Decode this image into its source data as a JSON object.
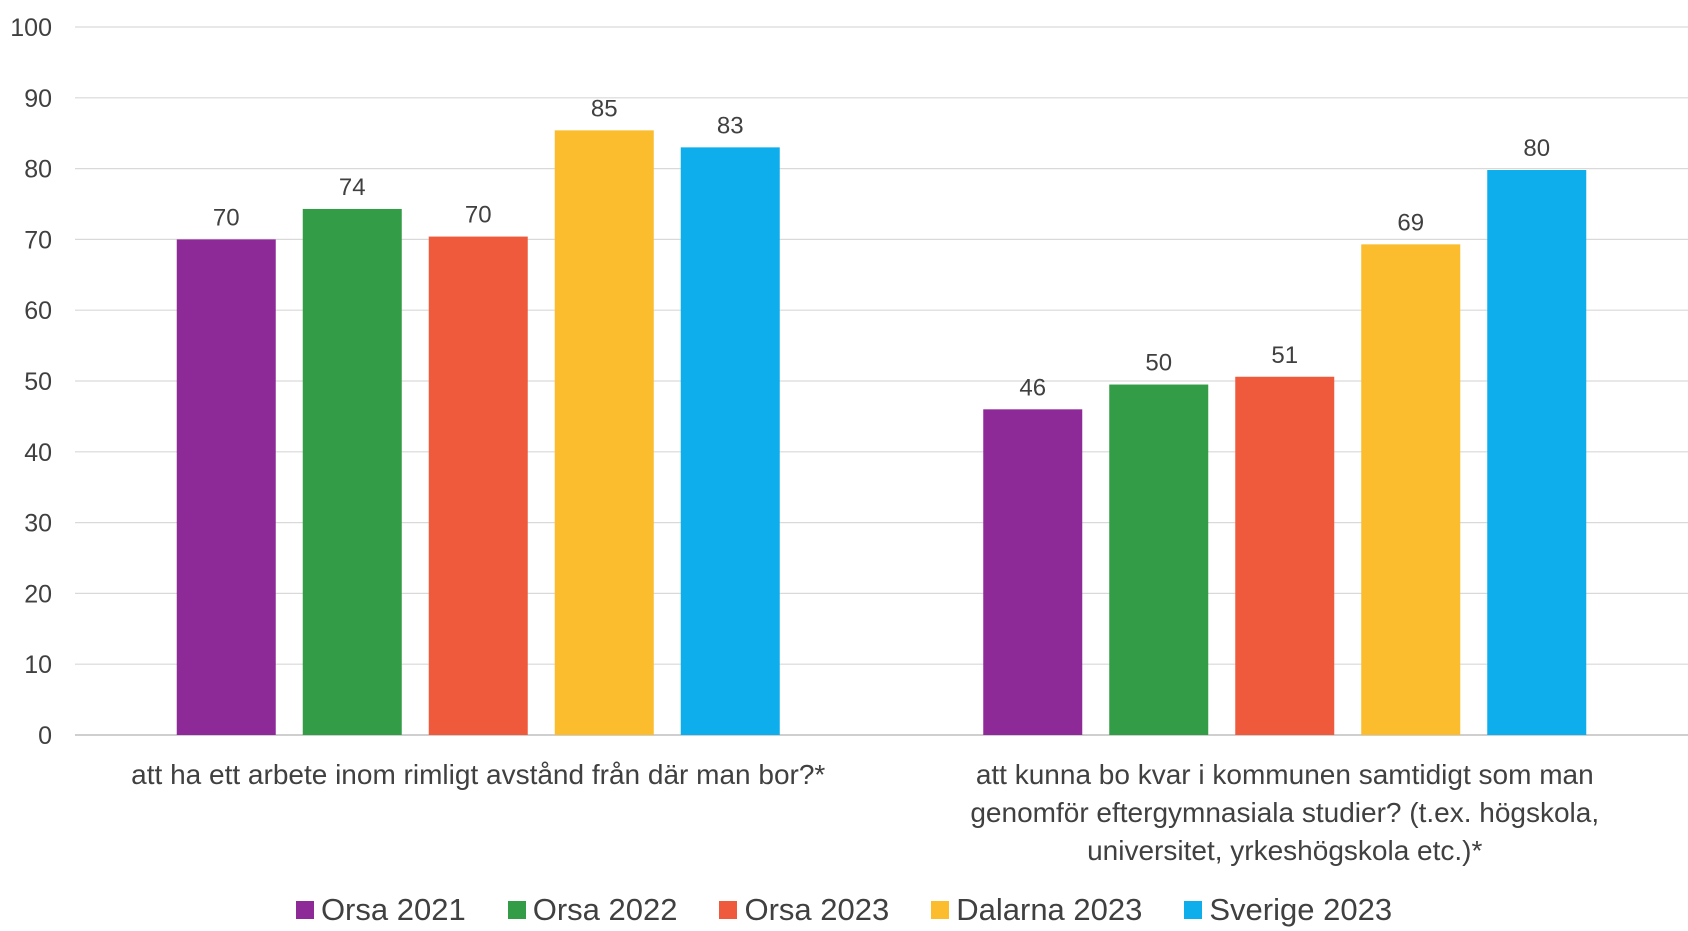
{
  "chart_data": {
    "type": "bar",
    "ylim": [
      0,
      100
    ],
    "yticks": [
      0,
      10,
      20,
      30,
      40,
      50,
      60,
      70,
      80,
      90,
      100
    ],
    "grid": true,
    "legend_position": "bottom",
    "categories": [
      "att ha ett arbete inom rimligt avstånd från där man bor?*",
      "att kunna bo kvar i kommunen samtidigt som man genomför eftergymnasiala studier? (t.ex. högskola, universitet, yrkeshögskola etc.)*"
    ],
    "category_lines": [
      [
        "att ha ett arbete inom rimligt avstånd från där man bor?*"
      ],
      [
        "att kunna bo kvar i kommunen samtidigt som man",
        "genomför eftergymnasiala studier? (t.ex. högskola,",
        "universitet, yrkeshögskola etc.)*"
      ]
    ],
    "series": [
      {
        "name": "Orsa 2021",
        "color": "#8E2A98",
        "values": [
          70,
          46
        ],
        "labels": [
          "70",
          "46"
        ]
      },
      {
        "name": "Orsa 2022",
        "color": "#339C46",
        "values": [
          74.3,
          49.5
        ],
        "labels": [
          "74",
          "50"
        ]
      },
      {
        "name": "Orsa 2023",
        "color": "#EF5A3C",
        "values": [
          70.4,
          50.6
        ],
        "labels": [
          "70",
          "51"
        ]
      },
      {
        "name": "Dalarna 2023",
        "color": "#FBBC2E",
        "values": [
          85.4,
          69.3
        ],
        "labels": [
          "85",
          "69"
        ]
      },
      {
        "name": "Sverige 2023",
        "color": "#0DAEEB",
        "values": [
          83,
          79.8
        ],
        "labels": [
          "83",
          "80"
        ]
      }
    ]
  }
}
